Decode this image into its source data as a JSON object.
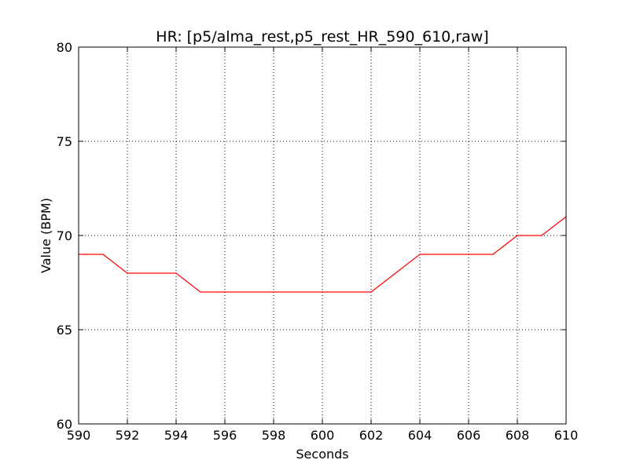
{
  "chart_data": {
    "type": "line",
    "title": "HR: [p5/alma_rest,p5_rest_HR_590_610,raw]",
    "xlabel": "Seconds",
    "ylabel": "Value (BPM)",
    "xlim": [
      590,
      610
    ],
    "ylim": [
      60,
      80
    ],
    "xticks": [
      590,
      592,
      594,
      596,
      598,
      600,
      602,
      604,
      606,
      608,
      610
    ],
    "yticks": [
      60,
      65,
      70,
      75,
      80
    ],
    "grid": true,
    "legend": "none",
    "series": [
      {
        "color": "#ff0000",
        "x": [
          590,
          591,
          592,
          593,
          594,
          595,
          596,
          597,
          598,
          599,
          600,
          601,
          602,
          603,
          604,
          605,
          606,
          607,
          608,
          609,
          610
        ],
        "y": [
          69,
          69,
          68,
          68,
          68,
          67,
          67,
          67,
          67,
          67,
          67,
          67,
          67,
          68,
          69,
          69,
          69,
          69,
          70,
          70,
          71
        ]
      }
    ]
  }
}
